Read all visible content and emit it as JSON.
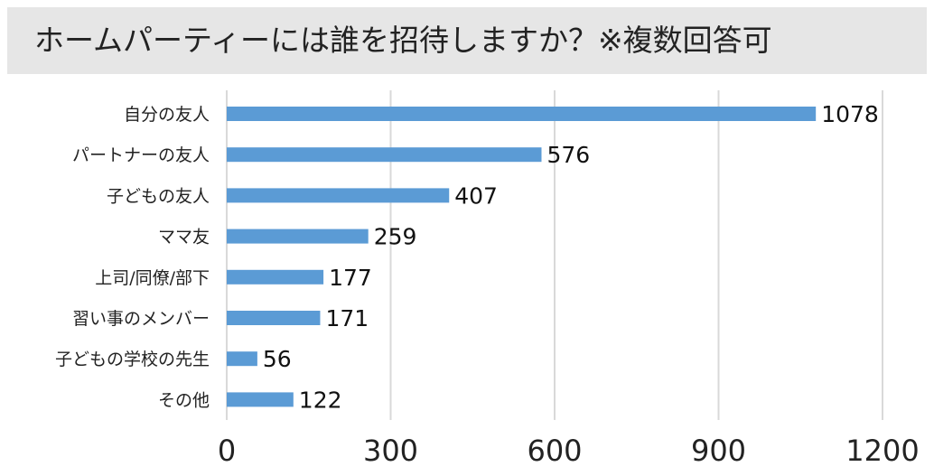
{
  "title": "ホームパーティーには誰を招待しますか？※複数回答可",
  "chart_data": {
    "type": "bar",
    "orientation": "horizontal",
    "title": "ホームパーティーには誰を招待しますか？※複数回答可",
    "categories": [
      "自分の友人",
      "パートナーの友人",
      "子どもの友人",
      "ママ友",
      "上司/同僚/部下",
      "習い事のメンバー",
      "子どもの学校の先生",
      "その他"
    ],
    "values": [
      1078,
      576,
      407,
      259,
      177,
      171,
      56,
      122
    ],
    "xlim": [
      0,
      1200
    ],
    "xticks": [
      0,
      300,
      600,
      900,
      1200
    ],
    "xtick_labels": [
      "0",
      "300",
      "600",
      "900",
      "1200"
    ],
    "grid": true,
    "bar_color": "#5b9bd5",
    "grid_color": "#d9d9d9"
  }
}
